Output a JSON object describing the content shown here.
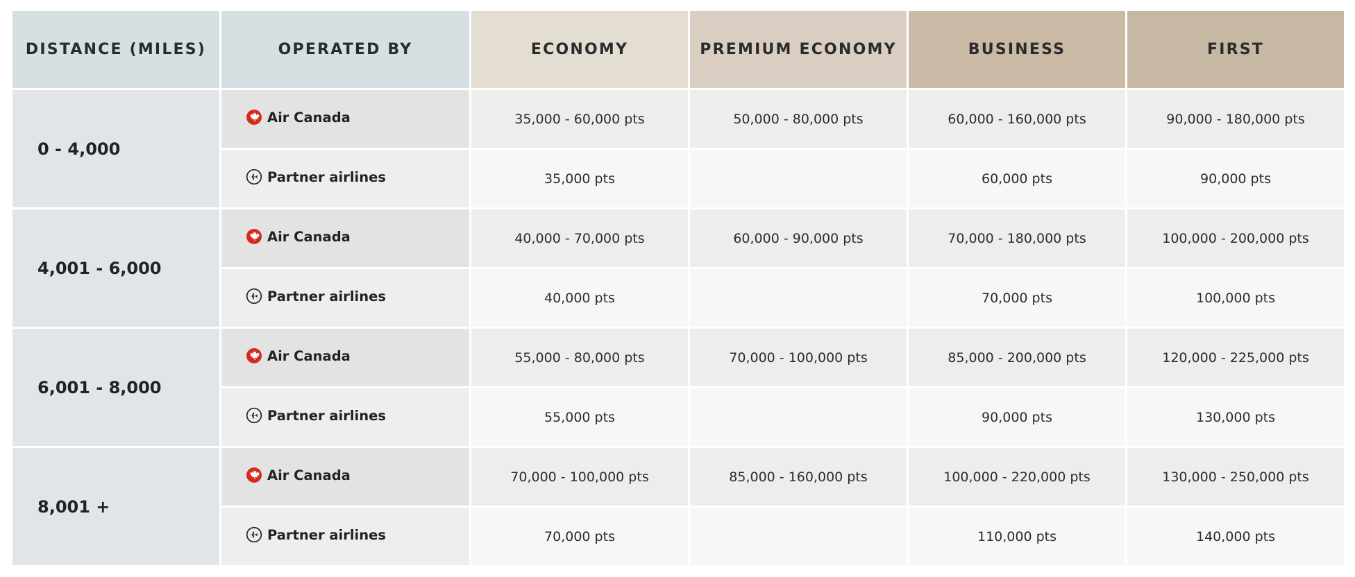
{
  "colors": {
    "header_blue": "#d6dfe2",
    "economy": "#e4ddd2",
    "premium_economy": "#d9cec1",
    "business": "#c9b9a5",
    "first": "#c7b8a3",
    "air_canada_red": "#d52b1e"
  },
  "headers": {
    "distance": "DISTANCE (MILES)",
    "operated_by": "OPERATED BY",
    "economy": "ECONOMY",
    "premium_economy": "PREMIUM ECONOMY",
    "business": "BUSINESS",
    "first": "FIRST"
  },
  "operators": {
    "air_canada": {
      "label": "Air Canada",
      "icon": "maple-leaf-icon"
    },
    "partner": {
      "label": "Partner airlines",
      "icon": "airplane-circle-icon"
    }
  },
  "bands": [
    {
      "distance": "0 - 4,000",
      "air_canada": {
        "economy": "35,000 - 60,000 pts",
        "premium_economy": "50,000 - 80,000 pts",
        "business": "60,000 - 160,000 pts",
        "first": "90,000 - 180,000 pts"
      },
      "partner": {
        "economy": "35,000 pts",
        "premium_economy": "",
        "business": "60,000 pts",
        "first": "90,000 pts"
      }
    },
    {
      "distance": "4,001 - 6,000",
      "air_canada": {
        "economy": "40,000 - 70,000 pts",
        "premium_economy": "60,000 - 90,000 pts",
        "business": "70,000 - 180,000 pts",
        "first": "100,000 - 200,000 pts"
      },
      "partner": {
        "economy": "40,000 pts",
        "premium_economy": "",
        "business": "70,000 pts",
        "first": "100,000 pts"
      }
    },
    {
      "distance": "6,001 - 8,000",
      "air_canada": {
        "economy": "55,000 - 80,000 pts",
        "premium_economy": "70,000 - 100,000 pts",
        "business": "85,000 - 200,000 pts",
        "first": "120,000 - 225,000 pts"
      },
      "partner": {
        "economy": "55,000 pts",
        "premium_economy": "",
        "business": "90,000 pts",
        "first": "130,000 pts"
      }
    },
    {
      "distance": "8,001 +",
      "air_canada": {
        "economy": "70,000 - 100,000 pts",
        "premium_economy": "85,000 - 160,000 pts",
        "business": "100,000 - 220,000 pts",
        "first": "130,000 - 250,000 pts"
      },
      "partner": {
        "economy": "70,000 pts",
        "premium_economy": "",
        "business": "110,000 pts",
        "first": "140,000 pts"
      }
    }
  ]
}
